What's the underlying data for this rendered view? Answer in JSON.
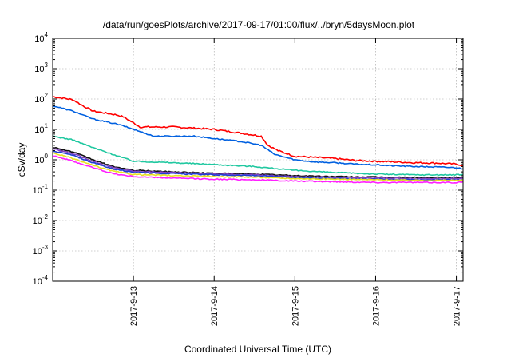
{
  "chart_data": {
    "type": "line",
    "title": "/data/run/goesPlots/archive/2017-09-17/01:00/flux/../bryn/5daysMoon.plot",
    "xlabel": "Coordinated Universal Time (UTC)",
    "ylabel": "cSv/day",
    "yscale": "log",
    "ylim": [
      0.0001,
      10000
    ],
    "y_ticks": [
      {
        "base": "10",
        "exp": "-4",
        "value": 0.0001
      },
      {
        "base": "10",
        "exp": "-3",
        "value": 0.001
      },
      {
        "base": "10",
        "exp": "-2",
        "value": 0.01
      },
      {
        "base": "10",
        "exp": "-1",
        "value": 0.1
      },
      {
        "base": "10",
        "exp": "0",
        "value": 1
      },
      {
        "base": "10",
        "exp": "1",
        "value": 10
      },
      {
        "base": "10",
        "exp": "2",
        "value": 100
      },
      {
        "base": "10",
        "exp": "3",
        "value": 1000
      },
      {
        "base": "10",
        "exp": "4",
        "value": 10000
      }
    ],
    "xlim": [
      "2017-09-12T00:00",
      "2017-09-17T02:00"
    ],
    "x_ticks": [
      "2017-9-13",
      "2017-9-14",
      "2017-9-15",
      "2017-9-16",
      "2017-9-17"
    ],
    "grid": true,
    "series": [
      {
        "color": "#ff0000",
        "x": [
          "2017-09-12T00:00",
          "2017-09-12T06:00",
          "2017-09-12T09:00",
          "2017-09-12T12:00",
          "2017-09-12T19:00",
          "2017-09-12T21:00",
          "2017-09-13T02:00",
          "2017-09-13T12:00",
          "2017-09-13T18:00",
          "2017-09-14T00:00",
          "2017-09-14T08:00",
          "2017-09-14T14:00",
          "2017-09-14T16:00",
          "2017-09-14T19:00",
          "2017-09-15T00:00",
          "2017-09-15T06:00",
          "2017-09-15T12:00",
          "2017-09-15T18:00",
          "2017-09-16T00:00",
          "2017-09-16T06:00",
          "2017-09-16T12:00",
          "2017-09-16T18:00",
          "2017-09-17T00:00",
          "2017-09-17T02:00"
        ],
        "y": [
          120,
          95,
          60,
          40,
          30,
          26,
          12,
          12,
          11,
          10,
          7.5,
          6,
          3,
          2,
          1.3,
          1.2,
          1.1,
          0.95,
          0.9,
          0.85,
          0.8,
          0.78,
          0.72,
          0.65
        ]
      },
      {
        "color": "#0060e0",
        "x": [
          "2017-09-12T00:00",
          "2017-09-12T06:00",
          "2017-09-12T12:00",
          "2017-09-12T19:00",
          "2017-09-12T21:00",
          "2017-09-13T06:00",
          "2017-09-13T18:00",
          "2017-09-14T00:00",
          "2017-09-14T08:00",
          "2017-09-14T14:00",
          "2017-09-14T18:00",
          "2017-09-15T00:00",
          "2017-09-15T06:00",
          "2017-09-15T12:00",
          "2017-09-15T18:00",
          "2017-09-16T00:00",
          "2017-09-16T06:00",
          "2017-09-16T12:00",
          "2017-09-16T18:00",
          "2017-09-17T00:00",
          "2017-09-17T02:00"
        ],
        "y": [
          60,
          40,
          22,
          15,
          13,
          6,
          6,
          5,
          4,
          3,
          1.5,
          1,
          0.85,
          0.8,
          0.72,
          0.68,
          0.63,
          0.6,
          0.58,
          0.55,
          0.5
        ]
      },
      {
        "color": "#20c8a0",
        "x": [
          "2017-09-12T00:00",
          "2017-09-12T06:00",
          "2017-09-12T12:00",
          "2017-09-12T18:00",
          "2017-09-13T00:00",
          "2017-09-13T12:00",
          "2017-09-14T00:00",
          "2017-09-14T12:00",
          "2017-09-15T00:00",
          "2017-09-15T12:00",
          "2017-09-16T00:00",
          "2017-09-16T12:00",
          "2017-09-17T00:00",
          "2017-09-17T02:00"
        ],
        "y": [
          6,
          4.5,
          2.5,
          1.5,
          0.9,
          0.8,
          0.7,
          0.6,
          0.45,
          0.38,
          0.34,
          0.32,
          0.32,
          0.33
        ]
      },
      {
        "color": "#101010",
        "x": [
          "2017-09-12T00:00",
          "2017-09-12T06:00",
          "2017-09-12T12:00",
          "2017-09-12T18:00",
          "2017-09-13T00:00",
          "2017-09-13T12:00",
          "2017-09-14T00:00",
          "2017-09-14T12:00",
          "2017-09-15T00:00",
          "2017-09-15T12:00",
          "2017-09-16T00:00",
          "2017-09-16T12:00",
          "2017-09-17T00:00",
          "2017-09-17T02:00"
        ],
        "y": [
          2.6,
          1.8,
          1.0,
          0.6,
          0.45,
          0.4,
          0.36,
          0.34,
          0.3,
          0.28,
          0.27,
          0.26,
          0.26,
          0.26
        ]
      },
      {
        "color": "#8040c0",
        "x": [
          "2017-09-12T00:00",
          "2017-09-12T06:00",
          "2017-09-12T12:00",
          "2017-09-12T18:00",
          "2017-09-13T00:00",
          "2017-09-13T12:00",
          "2017-09-14T00:00",
          "2017-09-14T12:00",
          "2017-09-15T00:00",
          "2017-09-15T12:00",
          "2017-09-16T00:00",
          "2017-09-16T12:00",
          "2017-09-17T00:00",
          "2017-09-17T02:00"
        ],
        "y": [
          2.3,
          1.6,
          0.9,
          0.55,
          0.42,
          0.38,
          0.34,
          0.32,
          0.28,
          0.26,
          0.25,
          0.24,
          0.24,
          0.24
        ]
      },
      {
        "color": "#2040d0",
        "x": [
          "2017-09-12T00:00",
          "2017-09-12T06:00",
          "2017-09-12T12:00",
          "2017-09-12T18:00",
          "2017-09-13T00:00",
          "2017-09-13T12:00",
          "2017-09-14T00:00",
          "2017-09-14T12:00",
          "2017-09-15T00:00",
          "2017-09-15T12:00",
          "2017-09-16T00:00",
          "2017-09-16T12:00",
          "2017-09-17T00:00",
          "2017-09-17T02:00"
        ],
        "y": [
          2.0,
          1.4,
          0.8,
          0.5,
          0.39,
          0.35,
          0.32,
          0.3,
          0.26,
          0.24,
          0.23,
          0.22,
          0.22,
          0.22
        ]
      },
      {
        "color": "#e8e020",
        "x": [
          "2017-09-12T00:00",
          "2017-09-12T06:00",
          "2017-09-12T12:00",
          "2017-09-12T18:00",
          "2017-09-13T00:00",
          "2017-09-13T12:00",
          "2017-09-14T00:00",
          "2017-09-14T12:00",
          "2017-09-15T00:00",
          "2017-09-15T12:00",
          "2017-09-16T00:00",
          "2017-09-16T12:00",
          "2017-09-17T00:00",
          "2017-09-17T02:00"
        ],
        "y": [
          1.7,
          1.1,
          0.65,
          0.42,
          0.33,
          0.3,
          0.28,
          0.27,
          0.24,
          0.23,
          0.22,
          0.21,
          0.21,
          0.22
        ]
      },
      {
        "color": "#ff20ff",
        "x": [
          "2017-09-12T00:00",
          "2017-09-12T06:00",
          "2017-09-12T12:00",
          "2017-09-12T18:00",
          "2017-09-13T00:00",
          "2017-09-13T12:00",
          "2017-09-14T00:00",
          "2017-09-14T12:00",
          "2017-09-15T00:00",
          "2017-09-15T12:00",
          "2017-09-16T00:00",
          "2017-09-16T12:00",
          "2017-09-17T00:00",
          "2017-09-17T02:00"
        ],
        "y": [
          1.4,
          0.9,
          0.55,
          0.35,
          0.28,
          0.25,
          0.23,
          0.22,
          0.2,
          0.19,
          0.18,
          0.18,
          0.18,
          0.19
        ]
      }
    ]
  }
}
